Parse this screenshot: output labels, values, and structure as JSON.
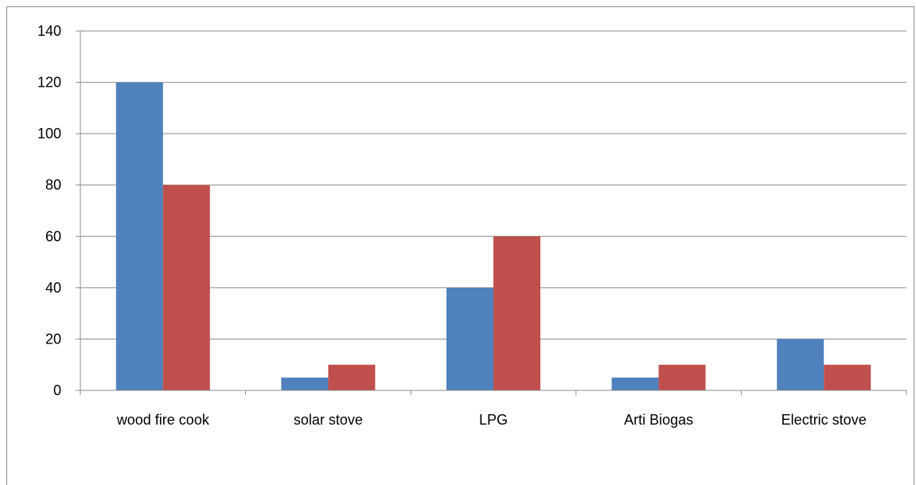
{
  "chart_data": {
    "type": "bar",
    "categories": [
      "wood fire cook",
      "solar stove",
      "LPG",
      "Arti Biogas",
      "Electric stove"
    ],
    "series": [
      {
        "values": [
          120,
          5,
          40,
          5,
          20
        ],
        "color": "#4f81bd"
      },
      {
        "values": [
          80,
          10,
          60,
          10,
          10
        ],
        "color": "#c0504d"
      }
    ],
    "title": "",
    "xlabel": "",
    "ylabel": "",
    "ylim": [
      0,
      140
    ],
    "yticks": [
      "0",
      "20",
      "40",
      "60",
      "80",
      "100",
      "120",
      "140"
    ],
    "grid": true,
    "legend": "none"
  }
}
